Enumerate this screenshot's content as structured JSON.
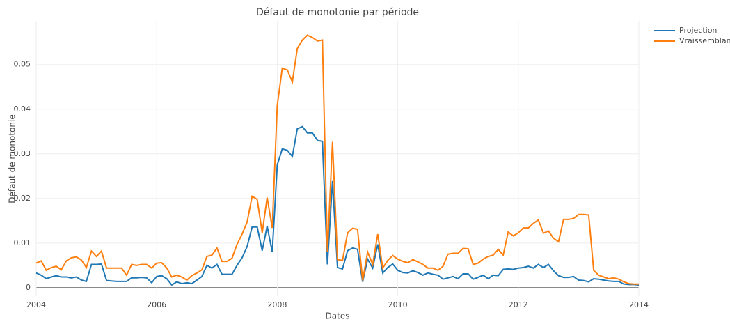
{
  "chart_data": {
    "type": "line",
    "title": "Défaut de monotonie par période",
    "xlabel": "Dates",
    "ylabel": "Défaut de monotonie",
    "x": [
      2004,
      2004.083,
      2004.167,
      2004.25,
      2004.333,
      2004.417,
      2004.5,
      2004.583,
      2004.667,
      2004.75,
      2004.833,
      2004.917,
      2005,
      2005.083,
      2005.167,
      2005.25,
      2005.333,
      2005.417,
      2005.5,
      2005.583,
      2005.667,
      2005.75,
      2005.833,
      2005.917,
      2006,
      2006.083,
      2006.167,
      2006.25,
      2006.333,
      2006.417,
      2006.5,
      2006.583,
      2006.667,
      2006.75,
      2006.833,
      2006.917,
      2007,
      2007.083,
      2007.167,
      2007.25,
      2007.333,
      2007.417,
      2007.5,
      2007.583,
      2007.667,
      2007.75,
      2007.833,
      2007.917,
      2008,
      2008.083,
      2008.167,
      2008.25,
      2008.333,
      2008.417,
      2008.5,
      2008.583,
      2008.667,
      2008.75,
      2008.833,
      2008.917,
      2009,
      2009.083,
      2009.167,
      2009.25,
      2009.333,
      2009.417,
      2009.5,
      2009.583,
      2009.667,
      2009.75,
      2009.833,
      2009.917,
      2010,
      2010.083,
      2010.167,
      2010.25,
      2010.333,
      2010.417,
      2010.5,
      2010.583,
      2010.667,
      2010.75,
      2010.833,
      2010.917,
      2011,
      2011.083,
      2011.167,
      2011.25,
      2011.333,
      2011.417,
      2011.5,
      2011.583,
      2011.667,
      2011.75,
      2011.833,
      2011.917,
      2012,
      2012.083,
      2012.167,
      2012.25,
      2012.333,
      2012.417,
      2012.5,
      2012.583,
      2012.667,
      2012.75,
      2012.833,
      2012.917,
      2013,
      2013.083,
      2013.167,
      2013.25,
      2013.333,
      2013.417,
      2013.5,
      2013.583,
      2013.667,
      2013.75,
      2013.833,
      2013.917,
      2014
    ],
    "series": [
      {
        "name": "Projection",
        "color": "#1f77b4",
        "values": [
          0.0033,
          0.0028,
          0.002,
          0.0024,
          0.0027,
          0.0024,
          0.0024,
          0.0022,
          0.0024,
          0.0017,
          0.0014,
          0.0052,
          0.0052,
          0.0053,
          0.0016,
          0.0015,
          0.0014,
          0.0014,
          0.0014,
          0.0022,
          0.0022,
          0.0023,
          0.0022,
          0.0011,
          0.0025,
          0.0027,
          0.002,
          0.0006,
          0.0013,
          0.0009,
          0.0011,
          0.0009,
          0.0017,
          0.0025,
          0.005,
          0.0044,
          0.0052,
          0.003,
          0.003,
          0.003,
          0.005,
          0.0067,
          0.0092,
          0.0136,
          0.0136,
          0.0083,
          0.0138,
          0.008,
          0.0275,
          0.0311,
          0.0308,
          0.0294,
          0.0356,
          0.0361,
          0.0347,
          0.0347,
          0.033,
          0.0328,
          0.0052,
          0.0239,
          0.0045,
          0.0042,
          0.0083,
          0.0089,
          0.0086,
          0.0013,
          0.0064,
          0.0044,
          0.0097,
          0.0033,
          0.0045,
          0.0053,
          0.0039,
          0.0034,
          0.0033,
          0.0038,
          0.0034,
          0.0028,
          0.0033,
          0.003,
          0.0028,
          0.0019,
          0.0022,
          0.0025,
          0.002,
          0.0031,
          0.0031,
          0.0019,
          0.0023,
          0.0028,
          0.002,
          0.0028,
          0.0027,
          0.0041,
          0.0042,
          0.0041,
          0.0044,
          0.0045,
          0.0048,
          0.0044,
          0.0052,
          0.0045,
          0.0052,
          0.0038,
          0.0027,
          0.0023,
          0.0023,
          0.0025,
          0.0017,
          0.0016,
          0.0013,
          0.002,
          0.0019,
          0.0017,
          0.0015,
          0.0014,
          0.0014,
          0.0008,
          0.0007,
          0.0007,
          0.0006
        ]
      },
      {
        "name": "Vraissemblance",
        "color": "#ff7f0e",
        "values": [
          0.0055,
          0.006,
          0.0039,
          0.0045,
          0.0048,
          0.004,
          0.006,
          0.0067,
          0.0069,
          0.0062,
          0.0045,
          0.0082,
          0.007,
          0.0082,
          0.0044,
          0.0044,
          0.0044,
          0.0044,
          0.0028,
          0.0052,
          0.005,
          0.0052,
          0.0052,
          0.0044,
          0.0055,
          0.0056,
          0.0044,
          0.0024,
          0.0028,
          0.0024,
          0.0017,
          0.0027,
          0.0033,
          0.004,
          0.007,
          0.0073,
          0.0089,
          0.0059,
          0.0059,
          0.0066,
          0.0097,
          0.012,
          0.0147,
          0.0205,
          0.0198,
          0.0123,
          0.0202,
          0.0134,
          0.0408,
          0.0492,
          0.0488,
          0.0461,
          0.0536,
          0.0555,
          0.0566,
          0.0561,
          0.0553,
          0.0555,
          0.008,
          0.0327,
          0.0063,
          0.0061,
          0.0123,
          0.0133,
          0.0131,
          0.0016,
          0.008,
          0.0052,
          0.012,
          0.0044,
          0.0061,
          0.0072,
          0.0064,
          0.0059,
          0.0056,
          0.0063,
          0.0058,
          0.0052,
          0.0044,
          0.0044,
          0.0039,
          0.0048,
          0.0075,
          0.0077,
          0.0077,
          0.0088,
          0.0087,
          0.0052,
          0.0055,
          0.0064,
          0.007,
          0.0073,
          0.0086,
          0.0073,
          0.0125,
          0.0116,
          0.0123,
          0.0134,
          0.0134,
          0.0144,
          0.0152,
          0.0122,
          0.0127,
          0.0111,
          0.0103,
          0.0153,
          0.0153,
          0.0155,
          0.0164,
          0.0164,
          0.0163,
          0.0039,
          0.0028,
          0.0024,
          0.002,
          0.0022,
          0.0019,
          0.0013,
          0.0009,
          0.0008,
          0.0008
        ]
      }
    ],
    "xlim": [
      2004,
      2014
    ],
    "xticks": [
      2004,
      2006,
      2008,
      2010,
      2012,
      2014
    ],
    "ylim": [
      -0.0019,
      0.0598
    ],
    "yticks": [
      0,
      0.01,
      0.02,
      0.03,
      0.04,
      0.05
    ],
    "grid": true,
    "legend": "top-right"
  }
}
